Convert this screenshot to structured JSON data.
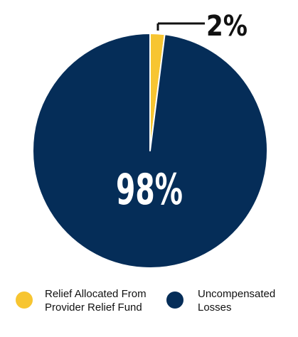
{
  "chart_data": {
    "type": "pie",
    "categories": [
      "Relief Allocated From Provider Relief Fund",
      "Uncompensated Losses"
    ],
    "values": [
      2,
      98
    ],
    "data_labels": [
      "2%",
      "98%"
    ],
    "colors": [
      "#F7C531",
      "#052D58"
    ],
    "legend_position": "bottom",
    "title": ""
  },
  "legend": {
    "items": [
      {
        "label": "Relief Allocated From Provider Relief Fund",
        "color": "#F7C531"
      },
      {
        "label": "Uncompensated Losses",
        "color": "#052D58"
      }
    ]
  }
}
